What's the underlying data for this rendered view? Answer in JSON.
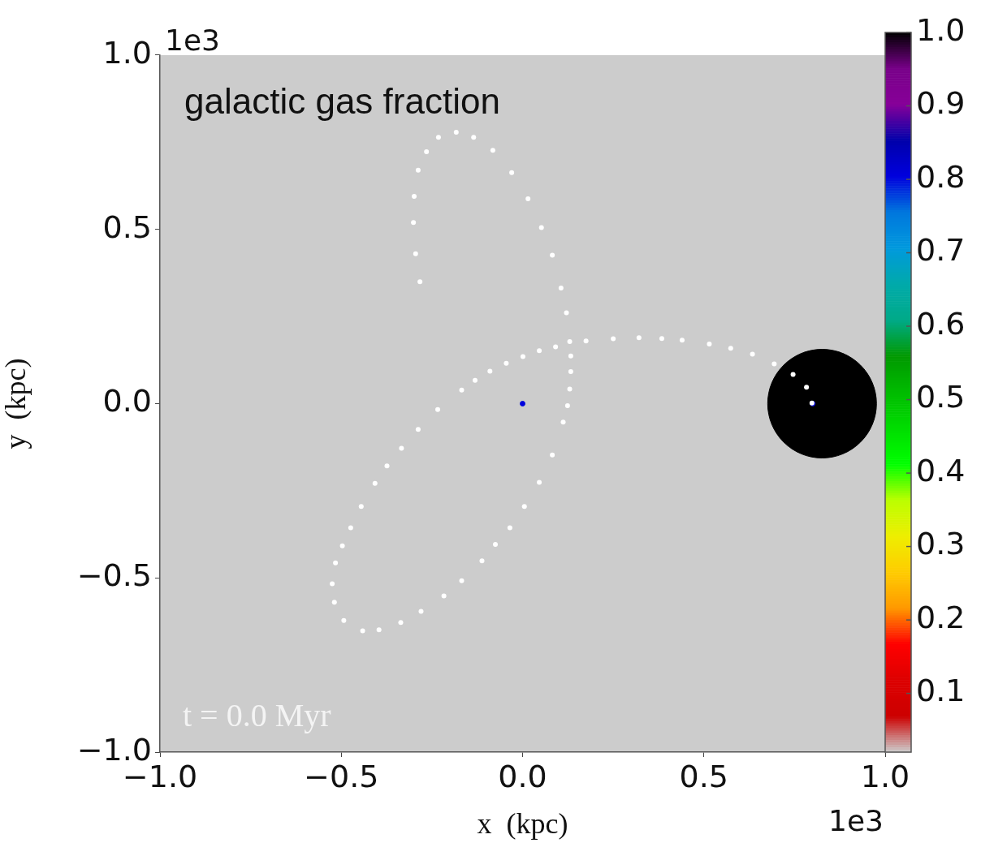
{
  "chart_data": {
    "type": "scatter",
    "title": "galactic gas fraction",
    "xlabel": "x  (kpc)",
    "ylabel": "y  (kpc)",
    "annotations": [
      "t = 0.0 Myr",
      "1e3",
      "1e3"
    ],
    "xlim": [
      -1,
      1
    ],
    "ylim": [
      -1,
      1
    ],
    "xticks": [
      {
        "value": -1,
        "label": "−1.0"
      },
      {
        "value": -0.5,
        "label": "−0.5"
      },
      {
        "value": 0,
        "label": "0.0"
      },
      {
        "value": 0.5,
        "label": "0.5"
      },
      {
        "value": 1,
        "label": "1.0"
      }
    ],
    "yticks": [
      {
        "value": -1,
        "label": "−1.0"
      },
      {
        "value": -0.5,
        "label": "−0.5"
      },
      {
        "value": 0,
        "label": "0.0"
      },
      {
        "value": 0.5,
        "label": "0.5"
      },
      {
        "value": 1,
        "label": "1.0"
      }
    ],
    "clim": [
      0.02,
      1.0
    ],
    "cticks": [
      {
        "value": 0.1,
        "label": "0.1"
      },
      {
        "value": 0.2,
        "label": "0.2"
      },
      {
        "value": 0.3,
        "label": "0.3"
      },
      {
        "value": 0.4,
        "label": "0.4"
      },
      {
        "value": 0.5,
        "label": "0.5"
      },
      {
        "value": 0.6,
        "label": "0.6"
      },
      {
        "value": 0.7,
        "label": "0.7"
      },
      {
        "value": 0.8,
        "label": "0.8"
      },
      {
        "value": 0.9,
        "label": "0.9"
      },
      {
        "value": 1.0,
        "label": "1.0"
      }
    ],
    "marker": "circle",
    "series": [
      {
        "color": "#ffffff",
        "x": [
          -0.283,
          -0.295,
          -0.301,
          -0.299,
          -0.288,
          -0.265,
          -0.232,
          -0.183,
          -0.135,
          -0.082,
          -0.03,
          0.015,
          0.052,
          0.082,
          0.106,
          0.121,
          0.13,
          0.133,
          0.133,
          0.13,
          0.124,
          0.112,
          0.082,
          0.046,
          0.005,
          -0.035,
          -0.075,
          -0.112,
          -0.168,
          -0.217,
          -0.28,
          -0.336,
          -0.396,
          -0.441,
          -0.493,
          -0.519,
          -0.525,
          -0.516,
          -0.497,
          -0.474,
          -0.445,
          -0.407,
          -0.374,
          -0.334,
          -0.288,
          -0.234,
          -0.168,
          -0.131,
          -0.09,
          -0.045,
          0.001,
          0.046,
          0.091,
          0.175,
          0.25,
          0.321,
          0.384,
          0.44,
          0.515,
          0.574,
          0.634,
          0.694,
          0.746,
          0.783,
          0.798
        ],
        "values": [
          0.35,
          0.43,
          0.52,
          0.595,
          0.67,
          0.723,
          0.764,
          0.779,
          0.764,
          0.727,
          0.663,
          0.588,
          0.505,
          0.426,
          0.332,
          0.261,
          0.178,
          0.137,
          0.092,
          0.042,
          -0.006,
          -0.053,
          -0.147,
          -0.226,
          -0.295,
          -0.356,
          -0.404,
          -0.451,
          -0.508,
          -0.552,
          -0.596,
          -0.628,
          -0.649,
          -0.652,
          -0.622,
          -0.57,
          -0.517,
          -0.457,
          -0.408,
          -0.356,
          -0.295,
          -0.229,
          -0.179,
          -0.128,
          -0.074,
          -0.017,
          0.039,
          0.067,
          0.093,
          0.116,
          0.135,
          0.152,
          0.163,
          0.18,
          0.186,
          0.189,
          0.187,
          0.182,
          0.171,
          0.159,
          0.142,
          0.114,
          0.084,
          0.047,
          0.002
        ]
      },
      {
        "type": "bubble",
        "x": [
          0.826,
          0,
          0.8
        ],
        "values": [
          0,
          0,
          0
        ],
        "sizes": [
          1,
          0.002,
          0.002
        ],
        "colors": [
          "#000000",
          "#0000dd",
          "#0000dd"
        ],
        "cvalues": [
          1.0,
          0.8,
          0.8
        ]
      }
    ]
  }
}
